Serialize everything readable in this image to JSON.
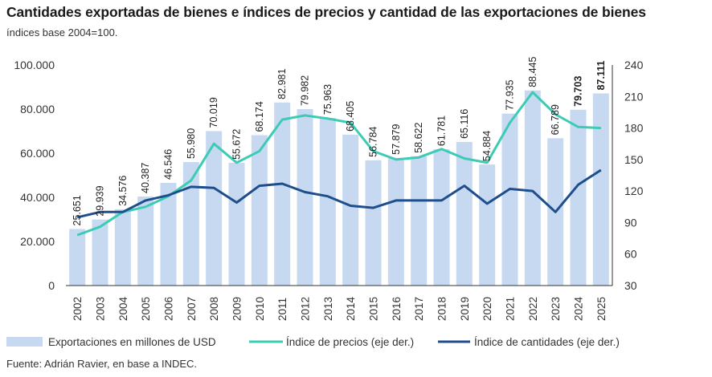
{
  "title": "Cantidades exportadas de bienes e índices de precios y cantidad de las exportaciones de bienes",
  "subtitle": "índices base 2004=100.",
  "source": "Fuente: Adrián Ravier, en base a INDEC.",
  "colors": {
    "bars": "#c6d9f1",
    "price_line": "#3ccbb4",
    "quantity_line": "#1f4e8c",
    "axis": "#333333"
  },
  "chart_data": {
    "type": "bar+line",
    "categories": [
      "2002",
      "2003",
      "2004",
      "2005",
      "2006",
      "2007",
      "2008",
      "2009",
      "2010",
      "2011",
      "2012",
      "2013",
      "2014",
      "2015",
      "2016",
      "2017",
      "2018",
      "2019",
      "2020",
      "2021",
      "2022",
      "2023",
      "2024",
      "2025"
    ],
    "left_axis": {
      "ylim": [
        0,
        100000
      ],
      "ticks": [
        0,
        20000,
        40000,
        60000,
        80000,
        100000
      ],
      "tick_labels": [
        "0",
        "20.000",
        "40.000",
        "60.000",
        "80.000",
        "100.000"
      ]
    },
    "right_axis": {
      "ylim": [
        30,
        240
      ],
      "ticks": [
        30,
        60,
        90,
        120,
        150,
        180,
        210,
        240
      ],
      "tick_labels": [
        "30",
        "60",
        "90",
        "120",
        "150",
        "180",
        "210",
        "240"
      ]
    },
    "series": [
      {
        "name": "Exportaciones en millones de USD",
        "type": "bar",
        "axis": "left",
        "values": [
          25651,
          29939,
          34576,
          40387,
          46546,
          55980,
          70019,
          55672,
          68174,
          82981,
          79982,
          75963,
          68405,
          56784,
          57879,
          58622,
          61781,
          65116,
          54884,
          77935,
          88445,
          66789,
          79703,
          87111
        ],
        "labels": [
          "25.651",
          "29.939",
          "34.576",
          "40.387",
          "46.546",
          "55.980",
          "70.019",
          "55.672",
          "68.174",
          "82.981",
          "79.982",
          "75.963",
          "68.405",
          "56.784",
          "57.879",
          "58.622",
          "61.781",
          "65.116",
          "54.884",
          "77.935",
          "88.445",
          "66.789",
          "79.703",
          "87.111"
        ],
        "bold_labels": [
          false,
          false,
          false,
          false,
          false,
          false,
          false,
          false,
          false,
          false,
          false,
          false,
          false,
          false,
          false,
          false,
          false,
          false,
          false,
          false,
          false,
          false,
          true,
          true
        ]
      },
      {
        "name": "Índice de precios (eje der.)",
        "type": "line",
        "axis": "right",
        "values": [
          78,
          86,
          100,
          105,
          115,
          130,
          165,
          147,
          158,
          188,
          192,
          189,
          185,
          158,
          150,
          152,
          160,
          151,
          147,
          185,
          214,
          193,
          181,
          180
        ]
      },
      {
        "name": "Índice de cantidades (eje der.)",
        "type": "line",
        "axis": "right",
        "values": [
          95,
          100,
          100,
          111,
          116,
          124,
          123,
          109,
          125,
          127,
          119,
          115,
          106,
          104,
          111,
          111,
          111,
          125,
          108,
          122,
          120,
          100,
          126,
          140
        ]
      }
    ],
    "legend_position": "bottom",
    "grid": false
  }
}
